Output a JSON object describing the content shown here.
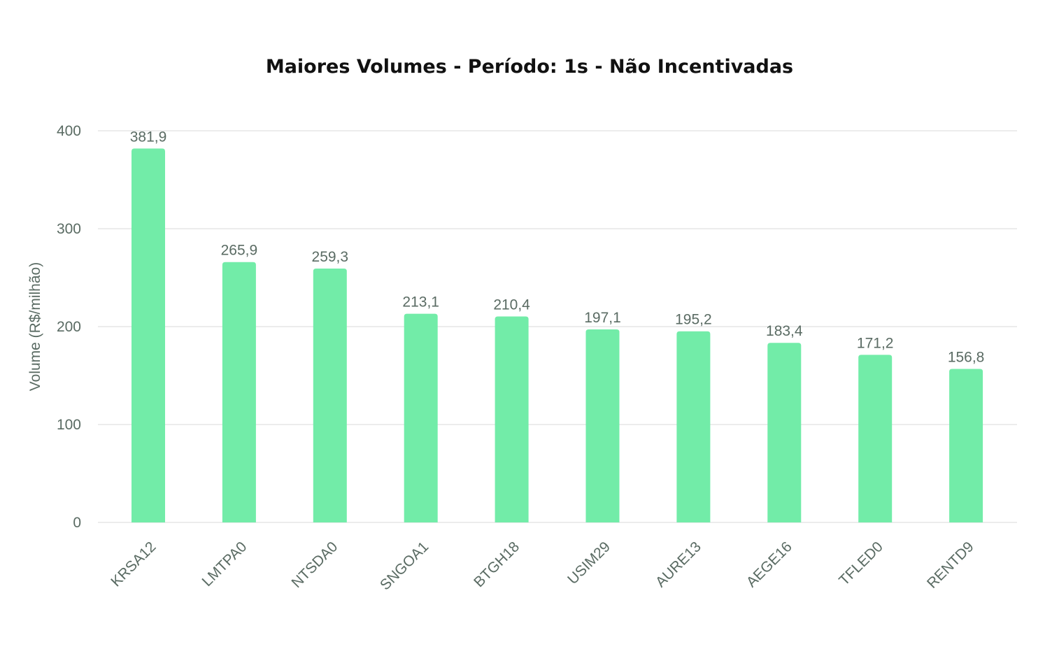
{
  "title": "Maiores Volumes - Período: 1s - Não Incentivadas",
  "colors": {
    "bar": "#72eca8",
    "grid": "#e6e6e6",
    "text": "#5a6b63"
  },
  "chart_data": {
    "type": "bar",
    "title": "Maiores Volumes - Período: 1s - Não Incentivadas",
    "xlabel": "",
    "ylabel": "Volume (R$/milhão)",
    "ylim": [
      0,
      400
    ],
    "yticks": [
      0,
      100,
      200,
      300,
      400
    ],
    "grid": true,
    "categories": [
      "KRSA12",
      "LMTPA0",
      "NTSDA0",
      "SNGOA1",
      "BTGH18",
      "USIM29",
      "AURE13",
      "AEGE16",
      "TFLED0",
      "RENTD9"
    ],
    "values": [
      381.9,
      265.9,
      259.3,
      213.1,
      210.4,
      197.1,
      195.2,
      183.4,
      171.2,
      156.8
    ],
    "value_labels": [
      "381,9",
      "265,9",
      "259,3",
      "213,1",
      "210,4",
      "197,1",
      "195,2",
      "183,4",
      "171,2",
      "156,8"
    ]
  }
}
